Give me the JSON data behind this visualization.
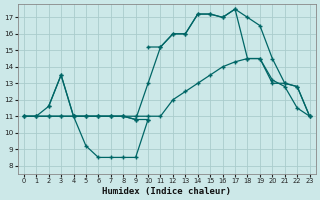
{
  "xlabel": "Humidex (Indice chaleur)",
  "bg_color": "#cce8e8",
  "grid_color": "#aacccc",
  "line_color": "#006666",
  "xlim": [
    -0.5,
    23.5
  ],
  "ylim": [
    7.5,
    17.8
  ],
  "yticks": [
    8,
    9,
    10,
    11,
    12,
    13,
    14,
    15,
    16,
    17
  ],
  "xticks": [
    0,
    1,
    2,
    3,
    4,
    5,
    6,
    7,
    8,
    9,
    10,
    11,
    12,
    13,
    14,
    15,
    16,
    17,
    18,
    19,
    20,
    21,
    22,
    23
  ],
  "lines": [
    {
      "x": [
        0,
        1,
        2,
        3,
        4,
        5,
        6,
        7,
        8,
        9,
        10
      ],
      "y": [
        11,
        11,
        11,
        11,
        11,
        9.2,
        8.5,
        8.5,
        8.5,
        8.5,
        10.8
      ]
    },
    {
      "x": [
        2,
        3,
        4,
        5,
        6,
        7,
        8,
        9,
        10
      ],
      "y": [
        11.6,
        13.5,
        11,
        11,
        11,
        11,
        11,
        10.8,
        10.8
      ]
    },
    {
      "x": [
        10,
        11,
        12,
        13,
        14,
        15,
        16,
        17,
        18,
        19,
        20,
        21,
        22,
        23
      ],
      "y": [
        15.2,
        15.2,
        16.0,
        16.0,
        17.2,
        17.2,
        17.0,
        17.5,
        17.0,
        16.5,
        14.5,
        13.0,
        12.8,
        11.0
      ]
    },
    {
      "x": [
        0,
        1,
        2,
        3,
        4,
        5,
        6,
        7,
        8,
        9,
        10,
        11,
        12,
        13,
        14,
        15,
        16,
        17,
        18,
        19,
        20,
        21,
        22,
        23
      ],
      "y": [
        11,
        11,
        11.6,
        13.5,
        11,
        11,
        11,
        11,
        11,
        10.8,
        13.0,
        15.2,
        16.0,
        16.0,
        17.2,
        17.2,
        17.0,
        17.5,
        14.5,
        14.5,
        13.0,
        13.0,
        12.8,
        11.0
      ]
    },
    {
      "x": [
        0,
        1,
        2,
        3,
        4,
        5,
        6,
        7,
        8,
        9,
        10,
        11,
        12,
        13,
        14,
        15,
        16,
        17,
        18,
        19,
        20,
        21,
        22,
        23
      ],
      "y": [
        11,
        11,
        11,
        11,
        11,
        11,
        11,
        11,
        11,
        11,
        11,
        11,
        12,
        12.5,
        13,
        13.5,
        14,
        14.3,
        14.5,
        14.5,
        13.2,
        12.8,
        11.5,
        11.0
      ]
    }
  ]
}
